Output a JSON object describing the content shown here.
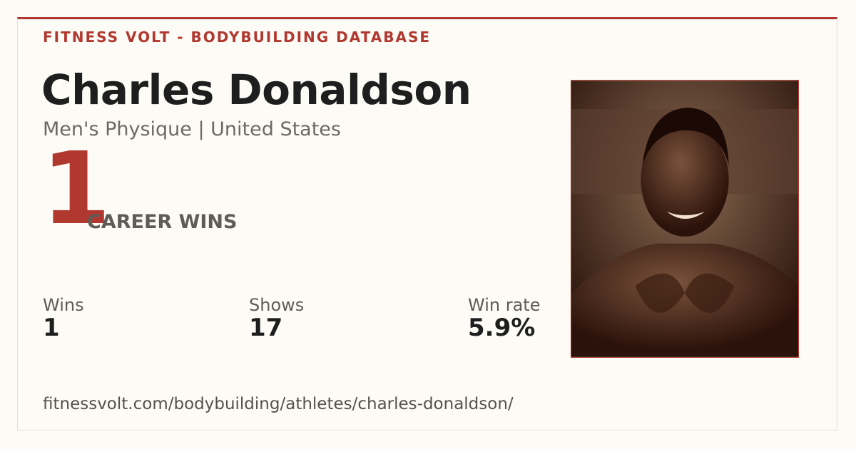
{
  "header": {
    "brand": "FITNESS VOLT - BODYBUILDING DATABASE"
  },
  "athlete": {
    "name": "Charles Donaldson",
    "subtitle": "Men's Physique | United States"
  },
  "highlight": {
    "number": "1",
    "label": "CAREER WINS"
  },
  "stats": [
    {
      "label": "Wins",
      "value": "1"
    },
    {
      "label": "Shows",
      "value": "17"
    },
    {
      "label": "Win rate",
      "value": "5.9%"
    }
  ],
  "footer": {
    "url": "fitnessvolt.com/bodybuilding/athletes/charles-donaldson/"
  }
}
